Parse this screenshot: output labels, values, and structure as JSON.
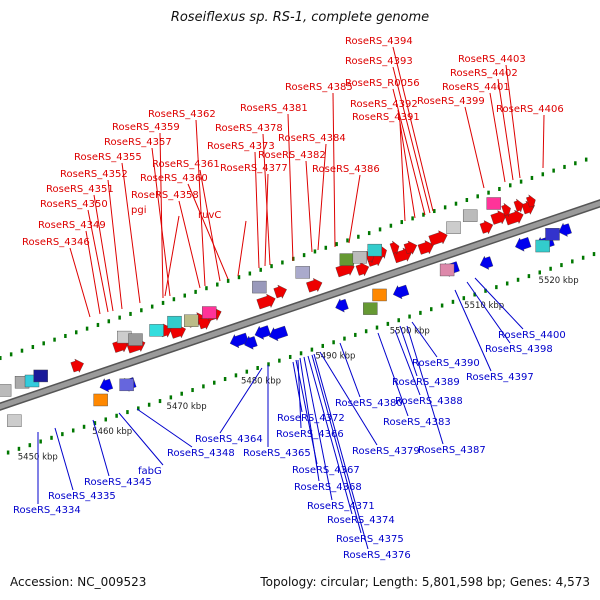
{
  "title": "Roseiflexus sp. RS-1, complete genome",
  "footer": {
    "accession": "Accession: NC_009523",
    "summary": "Topology: circular; Length: 5,801,598 bp; Genes: 4,573"
  },
  "colors": {
    "forward_gene": "#ee0000",
    "reverse_gene": "#0000ee",
    "ncrna_label": "#ff88cc",
    "backbone": "#9a9a9a",
    "tick": "#007700"
  },
  "scale_ticks": [
    {
      "label": "5450 kbp"
    },
    {
      "label": "5460 kbp"
    },
    {
      "label": "5470 kbp"
    },
    {
      "label": "5480 kbp"
    },
    {
      "label": "5490 kbp"
    },
    {
      "label": "5500 kbp"
    },
    {
      "label": "5510 kbp"
    },
    {
      "label": "5520 kbp"
    }
  ],
  "top_labels": [
    {
      "text": "RoseRS_4394"
    },
    {
      "text": "RoseRS_4393"
    },
    {
      "text": "RoseRS_R0056",
      "ncrna": true
    },
    {
      "text": "RoseRS_4392"
    },
    {
      "text": "RoseRS_4391"
    },
    {
      "text": "RoseRS_4403"
    },
    {
      "text": "RoseRS_4402"
    },
    {
      "text": "RoseRS_4401"
    },
    {
      "text": "RoseRS_4399"
    },
    {
      "text": "RoseRS_4406"
    },
    {
      "text": "RoseRS_4385"
    },
    {
      "text": "RoseRS_4381"
    },
    {
      "text": "RoseRS_4384"
    },
    {
      "text": "RoseRS_4382"
    },
    {
      "text": "RoseRS_4386"
    },
    {
      "text": "RoseRS_4378"
    },
    {
      "text": "RoseRS_4373"
    },
    {
      "text": "RoseRS_4377"
    },
    {
      "text": "RoseRS_4362"
    },
    {
      "text": "RoseRS_4359"
    },
    {
      "text": "RoseRS_4357"
    },
    {
      "text": "RoseRS_4355"
    },
    {
      "text": "RoseRS_4361"
    },
    {
      "text": "RoseRS_4352"
    },
    {
      "text": "RoseRS_4360"
    },
    {
      "text": "RoseRS_4351"
    },
    {
      "text": "RoseRS_4358"
    },
    {
      "text": "RoseRS_4350"
    },
    {
      "text": "pgi"
    },
    {
      "text": "ruvC"
    },
    {
      "text": "RoseRS_4349"
    },
    {
      "text": "RoseRS_4346"
    }
  ],
  "bottom_labels": [
    {
      "text": "RoseRS_4400"
    },
    {
      "text": "RoseRS_4398"
    },
    {
      "text": "RoseRS_4397"
    },
    {
      "text": "RoseRS_4390"
    },
    {
      "text": "RoseRS_4389"
    },
    {
      "text": "RoseRS_4388"
    },
    {
      "text": "RoseRS_4380"
    },
    {
      "text": "RoseRS_4383"
    },
    {
      "text": "RoseRS_4387"
    },
    {
      "text": "RoseRS_4372"
    },
    {
      "text": "RoseRS_4366"
    },
    {
      "text": "RoseRS_4364"
    },
    {
      "text": "RoseRS_4379"
    },
    {
      "text": "RoseRS_4365"
    },
    {
      "text": "RoseRS_4367"
    },
    {
      "text": "RoseRS_4368"
    },
    {
      "text": "RoseRS_4371"
    },
    {
      "text": "RoseRS_4374"
    },
    {
      "text": "RoseRS_4375"
    },
    {
      "text": "RoseRS_4376"
    },
    {
      "text": "RoseRS_4348"
    },
    {
      "text": "fabG"
    },
    {
      "text": "RoseRS_4345"
    },
    {
      "text": "RoseRS_4335"
    },
    {
      "text": "RoseRS_4334"
    }
  ]
}
